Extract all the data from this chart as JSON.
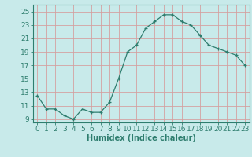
{
  "x": [
    0,
    1,
    2,
    3,
    4,
    5,
    6,
    7,
    8,
    9,
    10,
    11,
    12,
    13,
    14,
    15,
    16,
    17,
    18,
    19,
    20,
    21,
    22,
    23
  ],
  "y": [
    12.5,
    10.5,
    10.5,
    9.5,
    9.0,
    10.5,
    10.0,
    10.0,
    11.5,
    15.0,
    19.0,
    20.0,
    22.5,
    23.5,
    24.5,
    24.5,
    23.5,
    23.0,
    21.5,
    20.0,
    19.5,
    19.0,
    18.5,
    17.0
  ],
  "xlabel": "Humidex (Indice chaleur)",
  "xlim": [
    -0.5,
    23.5
  ],
  "ylim": [
    8.5,
    26
  ],
  "yticks": [
    9,
    11,
    13,
    15,
    17,
    19,
    21,
    23,
    25
  ],
  "xticks": [
    0,
    1,
    2,
    3,
    4,
    5,
    6,
    7,
    8,
    9,
    10,
    11,
    12,
    13,
    14,
    15,
    16,
    17,
    18,
    19,
    20,
    21,
    22,
    23
  ],
  "line_color": "#2e7d6e",
  "marker": "+",
  "bg_color": "#c8eaea",
  "grid_color": "#d4a0a0",
  "axis_color": "#2e7d6e",
  "xlabel_fontsize": 7,
  "tick_fontsize": 6.5
}
